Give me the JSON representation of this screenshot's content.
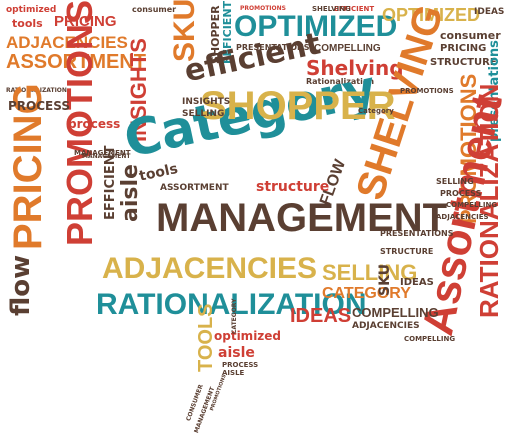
{
  "palette": {
    "teal": "#1f8f99",
    "orange": "#e07a2b",
    "red": "#cf3f35",
    "gold": "#d8b24b",
    "brown": "#5a3f32",
    "gray": "#6b5a52",
    "white": "#ffffff"
  },
  "words": {
    "category": "Category",
    "management": "MANAGEMENT",
    "shopper": "SHOPPER",
    "assortment_big": "Assortment",
    "optimized_top": "OPTIMIZED",
    "pricing_left": "PRICING",
    "promotions_left": "PROMOTIONS",
    "promotions_right": "PROMOTIONS",
    "adjacencies_mid": "ADJACENCIES",
    "rationalization_mid": "RATIONALIZATION",
    "insights": "INSIGHTS",
    "efficient": "efficient",
    "shelving": "Shelving",
    "shelving_right": "SHELVING",
    "flow": "flow",
    "aisle": "aisle",
    "tools": "TOOLS",
    "adjacencies_top": "ADJACENCIES",
    "assortment_top": "ASSORTMENT",
    "pricing_top": "PRICING",
    "sku_top": "SKU",
    "optimized_right": "OPTIMIZED",
    "structure_right": "STRUCTURE",
    "presentations": "presentations",
    "rationalization_right": "RATIONALIZATION",
    "category_mid": "CATEGORY",
    "ideas": "IDEAS",
    "compelling": "COMPELLING",
    "selling": "SELLING",
    "efficient_left": "EFFICIENT",
    "shopper_small": "SHOPPER",
    "process": "PROCESS",
    "assortment_small": "ASSORTMENT",
    "structure_small": "structure",
    "sku_mid": "SKU",
    "tools_small": "tools",
    "optimized_small": "optimized",
    "aisle_small": "aisle",
    "ideas_right": "IDEAS",
    "consumer": "consumer",
    "pricing_right": "PRICING",
    "structure_top": "STRUCTURE",
    "compelling_top": "COMPELLING",
    "flow_right": "FLOW",
    "selling_small": "SELLING",
    "insights_small": "INSIGHTS",
    "category_small": "Category",
    "presentations_small": "PRESENTATIONS",
    "efficient_small": "EFFICIENT",
    "management_small": "MANAGEMENT",
    "rationalization_small": "Rationalization",
    "tools_top": "tools",
    "optimized_tiny": "optimized",
    "promotions_small": "PROMOTIONS",
    "adjacencies_bottom": "ADJACENCIES",
    "compelling_bottom": "COMPELLING",
    "process_bottom": "PROCESS",
    "aisle_bottom": "AISLE",
    "category_bottom": "CATEGORY",
    "consumer_bottom": "CONSUMER",
    "management_bottom": "MANAGEMENT",
    "promotions_bottom": "PROMOTIONS",
    "management_left": "MANAGEMENT",
    "process_left": "process",
    "ideas_top": "IDEAS",
    "promotions_top": "PROMOTIONS",
    "efficient_top": "EFFICIENT",
    "presentations_top": "PRESENTATIONS",
    "rationalization_top": "RATIONALIZATION",
    "shelving_top": "SHELVING",
    "consumer_top": "consumer",
    "selling_right": "SELLING",
    "process_right": "PROCESS",
    "compelling_right": "COMPELLING",
    "adjacencies_right": "ADJACENCIES"
  }
}
